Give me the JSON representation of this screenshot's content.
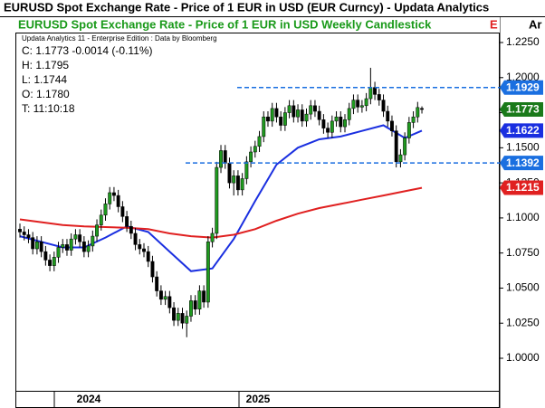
{
  "chart_data": {
    "type": "candlestick",
    "title": "EURUSD Spot Exchange Rate - Price of 1 EUR in USD (EUR Curncy) -  Updata Analytics",
    "subtitle": "EURUSD Spot Exchange Rate - Price of 1 EUR in USD Weekly Candlestick",
    "corner_marks": [
      "E",
      "Ar"
    ],
    "source": "Updata Analytics 11 - Enterprise Edition : Data by Bloomberg",
    "info": [
      "C: 1.1773  -0.0014 (-0.11%)",
      "H: 1.1795",
      "L: 1.1744",
      "O: 1.1780",
      "T: 11:10:18"
    ],
    "x_labels": [
      "2024",
      "2025"
    ],
    "xlim": [
      -0.85,
      112.2
    ],
    "ylim": [
      0.9768,
      1.2321
    ],
    "yticks": [
      {
        "value": 1.0,
        "label": "1.0000"
      },
      {
        "value": 1.025,
        "label": "1.0250"
      },
      {
        "value": 1.05,
        "label": "1.0500"
      },
      {
        "value": 1.075,
        "label": "1.0750"
      },
      {
        "value": 1.1,
        "label": "1.1000"
      },
      {
        "value": 1.125,
        "label": "1.1250"
      },
      {
        "value": 1.15,
        "label": "1.1500"
      },
      {
        "value": 1.175,
        "label": "1.1750"
      },
      {
        "value": 1.2,
        "label": "1.2000"
      },
      {
        "value": 1.225,
        "label": "1.2250"
      }
    ],
    "up_color": "#1f9a1f",
    "down_color": "#000000",
    "open": [
      1.092,
      1.09,
      1.088,
      1.086,
      1.078,
      1.083,
      1.076,
      1.07,
      1.066,
      1.072,
      1.079,
      1.081,
      1.077,
      1.085,
      1.088,
      1.083,
      1.076,
      1.08,
      1.087,
      1.095,
      1.102,
      1.11,
      1.118,
      1.116,
      1.108,
      1.101,
      1.094,
      1.089,
      1.081,
      1.078,
      1.076,
      1.069,
      1.058,
      1.048,
      1.042,
      1.044,
      1.036,
      1.027,
      1.032,
      1.025,
      1.03,
      1.041,
      1.035,
      1.048,
      1.04,
      1.083,
      1.089,
      1.136,
      1.148,
      1.139,
      1.125,
      1.13,
      1.12,
      1.128,
      1.14,
      1.147,
      1.151,
      1.158,
      1.172,
      1.169,
      1.178,
      1.172,
      1.166,
      1.175,
      1.18,
      1.172,
      1.177,
      1.169,
      1.174,
      1.18,
      1.176,
      1.17,
      1.164,
      1.161,
      1.169,
      1.172,
      1.165,
      1.17,
      1.178,
      1.184,
      1.179,
      1.18,
      1.185,
      1.193,
      1.188,
      1.184,
      1.176,
      1.169,
      1.162,
      1.14,
      1.145,
      1.157,
      1.168,
      1.172,
      1.178
    ],
    "high": [
      1.096,
      1.094,
      1.092,
      1.09,
      1.087,
      1.087,
      1.08,
      1.074,
      1.076,
      1.083,
      1.085,
      1.085,
      1.089,
      1.092,
      1.092,
      1.087,
      1.084,
      1.091,
      1.099,
      1.106,
      1.114,
      1.122,
      1.122,
      1.12,
      1.112,
      1.105,
      1.098,
      1.093,
      1.085,
      1.082,
      1.08,
      1.073,
      1.062,
      1.052,
      1.048,
      1.048,
      1.04,
      1.036,
      1.036,
      1.034,
      1.045,
      1.045,
      1.052,
      1.052,
      1.087,
      1.093,
      1.14,
      1.152,
      1.152,
      1.143,
      1.134,
      1.134,
      1.132,
      1.144,
      1.151,
      1.155,
      1.162,
      1.176,
      1.176,
      1.182,
      1.182,
      1.176,
      1.179,
      1.184,
      1.184,
      1.181,
      1.181,
      1.178,
      1.184,
      1.184,
      1.18,
      1.174,
      1.168,
      1.173,
      1.176,
      1.176,
      1.174,
      1.182,
      1.188,
      1.188,
      1.184,
      1.189,
      1.207,
      1.197,
      1.192,
      1.188,
      1.18,
      1.173,
      1.166,
      1.149,
      1.161,
      1.172,
      1.176,
      1.1827,
      1.1795
    ],
    "low": [
      1.086,
      1.084,
      1.082,
      1.074,
      1.074,
      1.072,
      1.066,
      1.062,
      1.062,
      1.068,
      1.075,
      1.073,
      1.073,
      1.081,
      1.079,
      1.072,
      1.072,
      1.076,
      1.083,
      1.091,
      1.098,
      1.106,
      1.112,
      1.104,
      1.097,
      1.09,
      1.085,
      1.077,
      1.074,
      1.072,
      1.065,
      1.054,
      1.044,
      1.038,
      1.038,
      1.032,
      1.023,
      1.023,
      1.021,
      1.015,
      1.026,
      1.031,
      1.031,
      1.036,
      1.036,
      1.079,
      1.085,
      1.132,
      1.135,
      1.121,
      1.116,
      1.116,
      1.116,
      1.124,
      1.136,
      1.143,
      1.147,
      1.154,
      1.165,
      1.165,
      1.168,
      1.162,
      1.162,
      1.171,
      1.168,
      1.168,
      1.165,
      1.165,
      1.17,
      1.172,
      1.166,
      1.16,
      1.157,
      1.157,
      1.165,
      1.161,
      1.161,
      1.166,
      1.174,
      1.175,
      1.175,
      1.176,
      1.181,
      1.184,
      1.18,
      1.172,
      1.165,
      1.158,
      1.136,
      1.136,
      1.141,
      1.153,
      1.164,
      1.168,
      1.1744
    ],
    "close": [
      1.09,
      1.088,
      1.086,
      1.078,
      1.083,
      1.076,
      1.07,
      1.066,
      1.072,
      1.079,
      1.081,
      1.077,
      1.085,
      1.088,
      1.083,
      1.076,
      1.08,
      1.087,
      1.095,
      1.102,
      1.11,
      1.118,
      1.116,
      1.108,
      1.101,
      1.094,
      1.089,
      1.081,
      1.078,
      1.076,
      1.069,
      1.058,
      1.048,
      1.042,
      1.044,
      1.036,
      1.027,
      1.032,
      1.025,
      1.03,
      1.041,
      1.035,
      1.048,
      1.04,
      1.083,
      1.089,
      1.136,
      1.148,
      1.139,
      1.125,
      1.13,
      1.12,
      1.128,
      1.14,
      1.147,
      1.151,
      1.158,
      1.172,
      1.169,
      1.178,
      1.172,
      1.166,
      1.175,
      1.18,
      1.172,
      1.177,
      1.169,
      1.174,
      1.18,
      1.176,
      1.17,
      1.164,
      1.161,
      1.169,
      1.172,
      1.165,
      1.17,
      1.178,
      1.184,
      1.179,
      1.18,
      1.185,
      1.193,
      1.188,
      1.184,
      1.176,
      1.169,
      1.162,
      1.14,
      1.145,
      1.157,
      1.168,
      1.172,
      1.1787,
      1.1773
    ],
    "lines": [
      {
        "color": "#1a2fe0",
        "x": [
          0,
          5,
          10,
          15,
          20,
          25,
          30,
          35,
          40,
          45,
          50,
          55,
          60,
          65,
          70,
          75,
          80,
          85,
          90,
          94
        ],
        "values": [
          1.087,
          1.083,
          1.079,
          1.079,
          1.086,
          1.094,
          1.09,
          1.076,
          1.062,
          1.064,
          1.085,
          1.112,
          1.138,
          1.15,
          1.156,
          1.158,
          1.162,
          1.166,
          1.157,
          1.1622
        ]
      },
      {
        "color": "#e02020",
        "x": [
          0,
          5,
          10,
          15,
          20,
          25,
          30,
          35,
          40,
          45,
          50,
          55,
          60,
          65,
          70,
          75,
          80,
          85,
          90,
          94
        ],
        "values": [
          1.099,
          1.097,
          1.095,
          1.094,
          1.0935,
          1.093,
          1.092,
          1.089,
          1.087,
          1.086,
          1.088,
          1.092,
          1.098,
          1.103,
          1.107,
          1.11,
          1.113,
          1.116,
          1.119,
          1.1215
        ]
      }
    ],
    "price_tags": [
      {
        "value": 1.1929,
        "color": "#1a6fe0",
        "dashed": true
      },
      {
        "value": 1.1773,
        "color": "#1a7a1a",
        "dashed": false
      },
      {
        "value": 1.1622,
        "color": "#1a2fe0",
        "dashed": false
      },
      {
        "value": 1.1392,
        "color": "#1a6fe0",
        "dashed": true
      },
      {
        "value": 1.1215,
        "color": "#e02020",
        "dashed": false
      }
    ]
  }
}
